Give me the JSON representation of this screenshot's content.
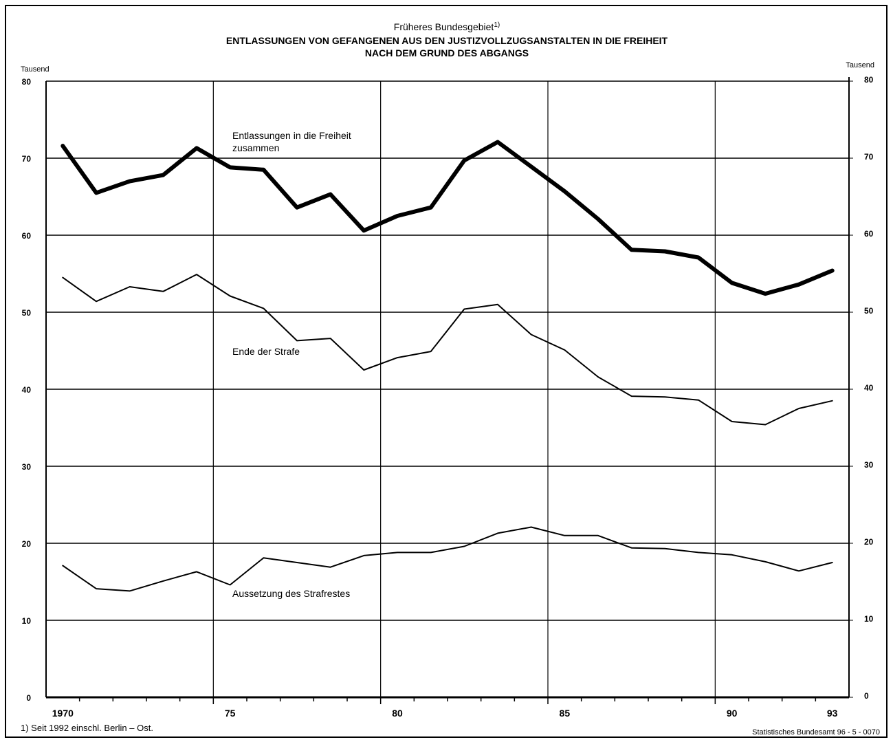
{
  "chart_data": {
    "type": "line",
    "subtitle": "Früheres Bundesgebiet",
    "subtitle_note": "1)",
    "title": [
      "ENTLASSUNGEN VON GEFANGENEN AUS DEN JUSTIZVOLLZUGSANSTALTEN IN DIE FREIHEIT",
      "NACH DEM GRUND DES ABGANGS"
    ],
    "ylabel": "Tausend",
    "y2label": "Tausend",
    "categories": [
      "1970",
      null,
      null,
      null,
      null,
      "75",
      null,
      null,
      null,
      null,
      "80",
      null,
      null,
      null,
      null,
      "85",
      null,
      null,
      null,
      null,
      "90",
      null,
      null,
      "93"
    ],
    "ylim": [
      0,
      80
    ],
    "yticks": [
      0,
      10,
      20,
      30,
      40,
      50,
      60,
      70,
      80
    ],
    "y2lim": [
      0,
      80
    ],
    "y2ticks": [
      0,
      10,
      20,
      30,
      40,
      50,
      60,
      70,
      80
    ],
    "grid": true,
    "series": [
      {
        "name": "Entlassungen in die Freiheit zusammen",
        "color": "#000000",
        "line_width": 6,
        "values": [
          71.6,
          65.5,
          67.0,
          67.8,
          71.3,
          68.8,
          68.5,
          63.6,
          65.3,
          60.6,
          62.5,
          63.6,
          69.7,
          72.1,
          68.9,
          65.7,
          62.1,
          58.1,
          57.9,
          57.1,
          53.8,
          52.4,
          53.6,
          55.4
        ]
      },
      {
        "name": "Ende der Strafe",
        "color": "#000000",
        "line_width": 2,
        "values": [
          54.5,
          51.4,
          53.3,
          52.7,
          54.9,
          52.1,
          50.5,
          46.3,
          46.6,
          42.5,
          44.1,
          44.9,
          50.4,
          51.0,
          47.1,
          45.1,
          41.6,
          39.1,
          39.0,
          38.6,
          35.8,
          35.4,
          37.5,
          38.5
        ]
      },
      {
        "name": "Aussetzung des Strafrestes",
        "color": "#000000",
        "line_width": 2,
        "values": [
          17.1,
          14.1,
          13.8,
          15.1,
          16.3,
          14.6,
          18.1,
          17.5,
          16.9,
          18.4,
          18.8,
          18.8,
          19.6,
          21.3,
          22.1,
          21.0,
          21.0,
          19.4,
          19.3,
          18.8,
          18.5,
          17.6,
          16.4,
          17.5
        ]
      }
    ],
    "footnote": "1) Seit 1992 einschl. Berlin – Ost.",
    "source": "Statistisches Bundesamt 96 - 5 - 0070"
  }
}
